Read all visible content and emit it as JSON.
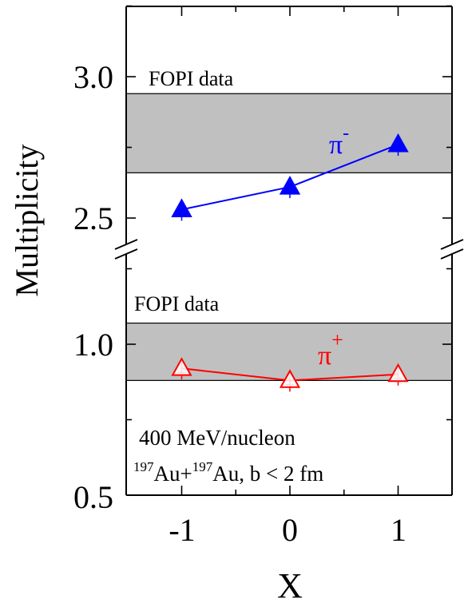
{
  "chart_data": [
    {
      "type": "scatter",
      "panel": "upper",
      "x_values": [
        -1,
        0,
        1
      ],
      "xlim": [
        -1.5,
        1.5
      ],
      "ylim": [
        2.3,
        3.25
      ],
      "y_ticks": [
        {
          "value": 2.5,
          "label": "2.5"
        },
        {
          "value": 3.0,
          "label": "3.0"
        }
      ],
      "band": {
        "y_low": 2.66,
        "y_high": 2.94,
        "color": "#c0c0c0",
        "label": "FOPI data"
      },
      "series": [
        {
          "name": "π⁻",
          "name_base": "π",
          "name_sup": "-",
          "color": "#0000ff",
          "marker": "filled-triangle",
          "y": [
            2.53,
            2.61,
            2.76
          ]
        }
      ]
    },
    {
      "type": "scatter",
      "panel": "lower",
      "x_values": [
        -1,
        0,
        1
      ],
      "xlim": [
        -1.5,
        1.5
      ],
      "ylim": [
        0.5,
        1.3
      ],
      "y_ticks": [
        {
          "value": 0.5,
          "label": "0.5"
        },
        {
          "value": 1.0,
          "label": "1.0"
        }
      ],
      "band": {
        "y_low": 0.88,
        "y_high": 1.07,
        "color": "#c0c0c0",
        "label": "FOPI data"
      },
      "series": [
        {
          "name": "π⁺",
          "name_base": "π",
          "name_sup": "+",
          "color": "#ff0000",
          "marker": "open-triangle",
          "y": [
            0.92,
            0.88,
            0.9
          ]
        }
      ]
    }
  ],
  "axes": {
    "ylabel": "Multiplicity",
    "xlabel": "X",
    "x_ticks": [
      {
        "value": -1,
        "label": "-1"
      },
      {
        "value": 0,
        "label": "0"
      },
      {
        "value": 1,
        "label": "1"
      }
    ]
  },
  "annotations": {
    "energy": "400 MeV/nucleon",
    "reaction": {
      "mass1": "197",
      "nucleus1": "Au+",
      "mass2": "197",
      "nucleus2": "Au, b < 2 fm"
    }
  }
}
